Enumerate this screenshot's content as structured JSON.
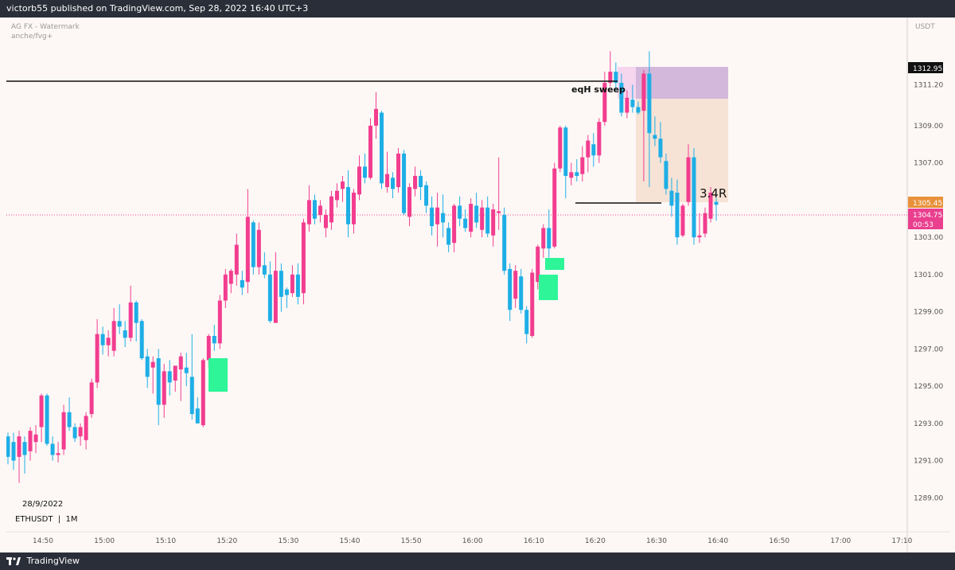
{
  "header": {
    "published": "victorb55 published on TradingView.com, Sep 28, 2022 16:40 UTC+3"
  },
  "watermark": {
    "line1": "AG FX - Watermark",
    "line2": "anche/fvg+"
  },
  "currency": "USDT",
  "date_label": "28/9/2022",
  "symbol_label": "ETHUSDT  |  1M",
  "footer": {
    "brand": "TradingView"
  },
  "colors": {
    "up": "#f23d8f",
    "down": "#1eaee6",
    "fvg": "#2df598",
    "price_tag": "#ea3f8e",
    "last_tag": "#e8913a"
  },
  "annotations": {
    "sweep": "eqH sweep",
    "rr": "3.4R"
  },
  "price_tags": {
    "top": "1312.95",
    "entry": "1305.45",
    "last": "1304.75",
    "countdown": "00:53"
  },
  "chart_data": {
    "type": "candlestick",
    "ylim": [
      1288.2,
      1314.3
    ],
    "yticks": [
      "1311.20",
      "1309.00",
      "1307.00",
      "1305.00",
      "1303.00",
      "1301.00",
      "1299.00",
      "1297.00",
      "1295.00",
      "1293.00",
      "1291.00",
      "1289.00"
    ],
    "xticks": [
      "14:50",
      "15:00",
      "15:10",
      "15:20",
      "15:30",
      "15:40",
      "15:50",
      "16:00",
      "16:10",
      "16:20",
      "16:30",
      "16:40",
      "16:50",
      "17:00",
      "17:10"
    ],
    "candles": [
      {
        "o": 1292.3,
        "h": 1292.5,
        "l": 1290.8,
        "c": 1291.2
      },
      {
        "o": 1292.0,
        "h": 1292.5,
        "l": 1290.5,
        "c": 1291.0
      },
      {
        "o": 1291.2,
        "h": 1292.6,
        "l": 1289.8,
        "c": 1292.3
      },
      {
        "o": 1292.0,
        "h": 1292.3,
        "l": 1290.3,
        "c": 1291.3
      },
      {
        "o": 1291.5,
        "h": 1292.8,
        "l": 1291.0,
        "c": 1292.6
      },
      {
        "o": 1292.0,
        "h": 1292.9,
        "l": 1291.4,
        "c": 1292.4
      },
      {
        "o": 1292.8,
        "h": 1294.6,
        "l": 1292.0,
        "c": 1294.5
      },
      {
        "o": 1294.5,
        "h": 1294.6,
        "l": 1291.8,
        "c": 1291.9
      },
      {
        "o": 1291.9,
        "h": 1292.3,
        "l": 1291.0,
        "c": 1291.3
      },
      {
        "o": 1291.3,
        "h": 1292.0,
        "l": 1290.9,
        "c": 1291.4
      },
      {
        "o": 1291.6,
        "h": 1294.0,
        "l": 1291.3,
        "c": 1293.6
      },
      {
        "o": 1293.6,
        "h": 1294.4,
        "l": 1292.6,
        "c": 1292.8
      },
      {
        "o": 1292.8,
        "h": 1293.0,
        "l": 1292.0,
        "c": 1292.2
      },
      {
        "o": 1292.3,
        "h": 1293.0,
        "l": 1291.8,
        "c": 1292.8
      },
      {
        "o": 1292.1,
        "h": 1293.6,
        "l": 1291.6,
        "c": 1293.4
      },
      {
        "o": 1293.5,
        "h": 1295.4,
        "l": 1293.3,
        "c": 1295.2
      },
      {
        "o": 1295.2,
        "h": 1298.6,
        "l": 1294.9,
        "c": 1297.8
      },
      {
        "o": 1297.8,
        "h": 1298.2,
        "l": 1296.7,
        "c": 1297.2
      },
      {
        "o": 1297.2,
        "h": 1298.0,
        "l": 1296.6,
        "c": 1297.6
      },
      {
        "o": 1296.9,
        "h": 1299.2,
        "l": 1296.6,
        "c": 1298.5
      },
      {
        "o": 1298.5,
        "h": 1299.4,
        "l": 1297.8,
        "c": 1298.2
      },
      {
        "o": 1298.0,
        "h": 1298.5,
        "l": 1297.1,
        "c": 1297.6
      },
      {
        "o": 1297.6,
        "h": 1300.4,
        "l": 1297.4,
        "c": 1299.5
      },
      {
        "o": 1299.5,
        "h": 1299.6,
        "l": 1297.4,
        "c": 1298.4
      },
      {
        "o": 1298.5,
        "h": 1298.6,
        "l": 1296.4,
        "c": 1296.5
      },
      {
        "o": 1296.6,
        "h": 1297.0,
        "l": 1294.9,
        "c": 1295.5
      },
      {
        "o": 1296.0,
        "h": 1296.6,
        "l": 1294.6,
        "c": 1296.3
      },
      {
        "o": 1296.5,
        "h": 1297.0,
        "l": 1292.9,
        "c": 1294.0
      },
      {
        "o": 1294.0,
        "h": 1296.2,
        "l": 1293.3,
        "c": 1295.8
      },
      {
        "o": 1295.8,
        "h": 1296.4,
        "l": 1294.5,
        "c": 1295.2
      },
      {
        "o": 1295.3,
        "h": 1296.0,
        "l": 1294.7,
        "c": 1296.1
      },
      {
        "o": 1295.9,
        "h": 1296.8,
        "l": 1294.2,
        "c": 1296.6
      },
      {
        "o": 1296.0,
        "h": 1296.8,
        "l": 1295.0,
        "c": 1295.7
      },
      {
        "o": 1295.5,
        "h": 1297.8,
        "l": 1293.2,
        "c": 1293.5
      },
      {
        "o": 1293.8,
        "h": 1294.4,
        "l": 1293.0,
        "c": 1293.0
      },
      {
        "o": 1292.9,
        "h": 1296.5,
        "l": 1292.8,
        "c": 1296.4
      },
      {
        "o": 1296.4,
        "h": 1297.8,
        "l": 1296.0,
        "c": 1297.7
      },
      {
        "o": 1297.7,
        "h": 1298.3,
        "l": 1296.9,
        "c": 1297.3
      },
      {
        "o": 1297.3,
        "h": 1299.9,
        "l": 1297.0,
        "c": 1299.6
      },
      {
        "o": 1299.6,
        "h": 1301.3,
        "l": 1299.2,
        "c": 1301.0
      },
      {
        "o": 1300.5,
        "h": 1301.3,
        "l": 1300.0,
        "c": 1301.2
      },
      {
        "o": 1301.0,
        "h": 1303.2,
        "l": 1300.4,
        "c": 1302.6
      },
      {
        "o": 1300.7,
        "h": 1301.2,
        "l": 1299.9,
        "c": 1300.3
      },
      {
        "o": 1300.6,
        "h": 1305.6,
        "l": 1300.0,
        "c": 1304.1
      },
      {
        "o": 1303.8,
        "h": 1303.9,
        "l": 1301.0,
        "c": 1301.4
      },
      {
        "o": 1301.4,
        "h": 1303.8,
        "l": 1301.0,
        "c": 1303.4
      },
      {
        "o": 1301.5,
        "h": 1302.2,
        "l": 1300.8,
        "c": 1301.0
      },
      {
        "o": 1301.0,
        "h": 1301.7,
        "l": 1298.4,
        "c": 1298.5
      },
      {
        "o": 1298.4,
        "h": 1302.2,
        "l": 1298.4,
        "c": 1301.2
      },
      {
        "o": 1301.2,
        "h": 1301.6,
        "l": 1299.0,
        "c": 1299.8
      },
      {
        "o": 1300.2,
        "h": 1300.3,
        "l": 1299.2,
        "c": 1299.9
      },
      {
        "o": 1300.0,
        "h": 1301.5,
        "l": 1299.8,
        "c": 1301.0
      },
      {
        "o": 1301.0,
        "h": 1301.6,
        "l": 1299.4,
        "c": 1299.8
      },
      {
        "o": 1300.0,
        "h": 1304.0,
        "l": 1299.4,
        "c": 1303.8
      },
      {
        "o": 1303.7,
        "h": 1305.8,
        "l": 1303.3,
        "c": 1305.0
      },
      {
        "o": 1305.0,
        "h": 1305.3,
        "l": 1303.7,
        "c": 1304.0
      },
      {
        "o": 1304.2,
        "h": 1305.0,
        "l": 1303.8,
        "c": 1304.7
      },
      {
        "o": 1303.5,
        "h": 1304.5,
        "l": 1303.0,
        "c": 1304.2
      },
      {
        "o": 1303.8,
        "h": 1305.5,
        "l": 1303.4,
        "c": 1305.2
      },
      {
        "o": 1305.0,
        "h": 1305.9,
        "l": 1304.6,
        "c": 1305.5
      },
      {
        "o": 1305.6,
        "h": 1306.3,
        "l": 1304.9,
        "c": 1306.0
      },
      {
        "o": 1305.7,
        "h": 1306.6,
        "l": 1303.0,
        "c": 1303.7
      },
      {
        "o": 1303.7,
        "h": 1305.6,
        "l": 1303.2,
        "c": 1305.4
      },
      {
        "o": 1305.3,
        "h": 1307.4,
        "l": 1305.0,
        "c": 1306.8
      },
      {
        "o": 1306.8,
        "h": 1307.5,
        "l": 1305.9,
        "c": 1306.2
      },
      {
        "o": 1306.2,
        "h": 1309.4,
        "l": 1306.1,
        "c": 1309.0
      },
      {
        "o": 1309.0,
        "h": 1310.8,
        "l": 1308.3,
        "c": 1309.9
      },
      {
        "o": 1309.7,
        "h": 1309.8,
        "l": 1305.6,
        "c": 1305.9
      },
      {
        "o": 1305.7,
        "h": 1307.6,
        "l": 1305.4,
        "c": 1306.4
      },
      {
        "o": 1306.2,
        "h": 1306.5,
        "l": 1305.1,
        "c": 1305.6
      },
      {
        "o": 1305.7,
        "h": 1307.8,
        "l": 1305.4,
        "c": 1307.5
      },
      {
        "o": 1307.5,
        "h": 1307.7,
        "l": 1304.2,
        "c": 1304.3
      },
      {
        "o": 1304.1,
        "h": 1305.9,
        "l": 1303.6,
        "c": 1305.7
      },
      {
        "o": 1305.6,
        "h": 1306.8,
        "l": 1305.2,
        "c": 1306.3
      },
      {
        "o": 1306.3,
        "h": 1306.6,
        "l": 1305.0,
        "c": 1305.7
      },
      {
        "o": 1305.8,
        "h": 1306.0,
        "l": 1304.3,
        "c": 1304.7
      },
      {
        "o": 1304.6,
        "h": 1305.2,
        "l": 1303.1,
        "c": 1303.6
      },
      {
        "o": 1303.7,
        "h": 1305.4,
        "l": 1302.5,
        "c": 1304.6
      },
      {
        "o": 1304.3,
        "h": 1305.3,
        "l": 1303.0,
        "c": 1303.8
      },
      {
        "o": 1303.5,
        "h": 1303.8,
        "l": 1302.2,
        "c": 1302.6
      },
      {
        "o": 1302.7,
        "h": 1304.8,
        "l": 1302.2,
        "c": 1304.7
      },
      {
        "o": 1304.7,
        "h": 1305.2,
        "l": 1303.6,
        "c": 1304.0
      },
      {
        "o": 1304.0,
        "h": 1304.5,
        "l": 1303.3,
        "c": 1303.5
      },
      {
        "o": 1303.3,
        "h": 1305.1,
        "l": 1303.0,
        "c": 1304.8
      },
      {
        "o": 1304.7,
        "h": 1305.4,
        "l": 1303.5,
        "c": 1303.8
      },
      {
        "o": 1303.4,
        "h": 1305.0,
        "l": 1303.0,
        "c": 1304.6
      },
      {
        "o": 1304.6,
        "h": 1305.2,
        "l": 1303.0,
        "c": 1303.2
      },
      {
        "o": 1303.1,
        "h": 1304.8,
        "l": 1302.5,
        "c": 1304.5
      },
      {
        "o": 1304.3,
        "h": 1307.3,
        "l": 1303.4,
        "c": 1304.4
      },
      {
        "o": 1304.2,
        "h": 1304.6,
        "l": 1301.0,
        "c": 1301.2
      },
      {
        "o": 1301.3,
        "h": 1301.6,
        "l": 1298.5,
        "c": 1299.1
      },
      {
        "o": 1299.7,
        "h": 1301.5,
        "l": 1299.2,
        "c": 1301.2
      },
      {
        "o": 1300.9,
        "h": 1301.3,
        "l": 1298.9,
        "c": 1299.1
      },
      {
        "o": 1299.1,
        "h": 1299.3,
        "l": 1297.3,
        "c": 1297.8
      },
      {
        "o": 1297.7,
        "h": 1301.3,
        "l": 1297.6,
        "c": 1301.1
      },
      {
        "o": 1300.6,
        "h": 1302.6,
        "l": 1300.2,
        "c": 1302.5
      },
      {
        "o": 1302.4,
        "h": 1303.7,
        "l": 1301.9,
        "c": 1303.5
      },
      {
        "o": 1303.5,
        "h": 1304.5,
        "l": 1301.9,
        "c": 1302.4
      },
      {
        "o": 1302.5,
        "h": 1307.0,
        "l": 1302.4,
        "c": 1306.7
      },
      {
        "o": 1306.7,
        "h": 1309.0,
        "l": 1306.5,
        "c": 1308.9
      },
      {
        "o": 1308.9,
        "h": 1309.0,
        "l": 1305.1,
        "c": 1306.3
      },
      {
        "o": 1306.2,
        "h": 1307.0,
        "l": 1305.8,
        "c": 1306.5
      },
      {
        "o": 1306.5,
        "h": 1307.2,
        "l": 1306.0,
        "c": 1306.3
      },
      {
        "o": 1306.4,
        "h": 1307.9,
        "l": 1306.0,
        "c": 1307.3
      },
      {
        "o": 1307.3,
        "h": 1308.5,
        "l": 1306.5,
        "c": 1308.2
      },
      {
        "o": 1308.0,
        "h": 1308.6,
        "l": 1306.8,
        "c": 1307.4
      },
      {
        "o": 1307.4,
        "h": 1309.4,
        "l": 1307.0,
        "c": 1309.2
      },
      {
        "o": 1309.2,
        "h": 1311.9,
        "l": 1309.0,
        "c": 1311.3
      },
      {
        "o": 1311.3,
        "h": 1313.0,
        "l": 1311.1,
        "c": 1311.9
      },
      {
        "o": 1311.9,
        "h": 1312.4,
        "l": 1310.9,
        "c": 1311.3
      },
      {
        "o": 1311.3,
        "h": 1311.8,
        "l": 1309.5,
        "c": 1309.7
      },
      {
        "o": 1309.7,
        "h": 1310.9,
        "l": 1309.4,
        "c": 1310.5
      },
      {
        "o": 1310.4,
        "h": 1311.2,
        "l": 1309.7,
        "c": 1310.0
      },
      {
        "o": 1310.0,
        "h": 1310.3,
        "l": 1309.6,
        "c": 1309.7
      },
      {
        "o": 1309.8,
        "h": 1312.0,
        "l": 1306.0,
        "c": 1311.8
      },
      {
        "o": 1311.8,
        "h": 1313.0,
        "l": 1305.7,
        "c": 1308.6
      },
      {
        "o": 1308.5,
        "h": 1309.5,
        "l": 1307.9,
        "c": 1308.3
      },
      {
        "o": 1308.3,
        "h": 1309.2,
        "l": 1307.0,
        "c": 1307.3
      },
      {
        "o": 1307.1,
        "h": 1307.5,
        "l": 1305.3,
        "c": 1305.6
      },
      {
        "o": 1305.5,
        "h": 1306.2,
        "l": 1304.1,
        "c": 1304.7
      },
      {
        "o": 1305.4,
        "h": 1306.1,
        "l": 1302.6,
        "c": 1303.0
      },
      {
        "o": 1303.1,
        "h": 1304.8,
        "l": 1303.0,
        "c": 1304.7
      },
      {
        "o": 1304.9,
        "h": 1308.0,
        "l": 1304.7,
        "c": 1307.3
      },
      {
        "o": 1307.3,
        "h": 1307.8,
        "l": 1302.6,
        "c": 1303.0
      },
      {
        "o": 1303.0,
        "h": 1304.3,
        "l": 1302.7,
        "c": 1303.1
      },
      {
        "o": 1303.2,
        "h": 1304.6,
        "l": 1303.0,
        "c": 1304.3
      },
      {
        "o": 1304.0,
        "h": 1305.7,
        "l": 1303.8,
        "c": 1305.4
      },
      {
        "o": 1304.9,
        "h": 1305.1,
        "l": 1303.9,
        "c": 1304.75
      }
    ]
  }
}
